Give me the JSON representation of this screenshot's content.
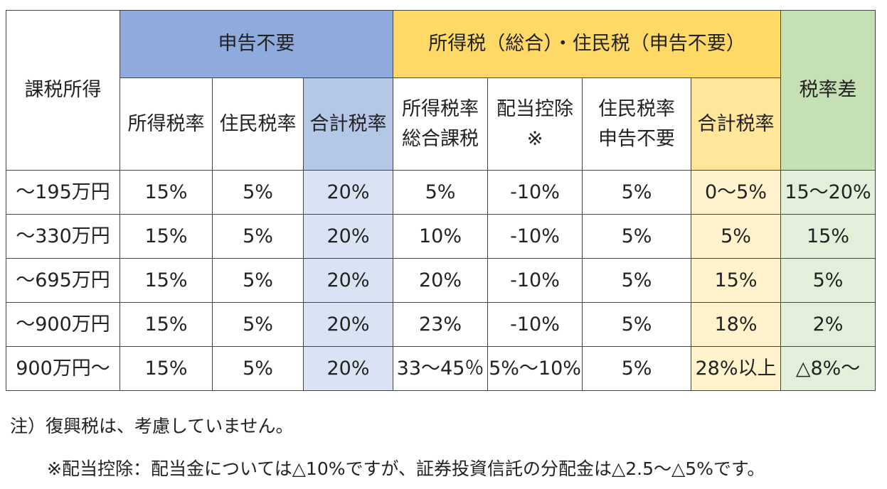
{
  "headers": {
    "taxable_income": "課税所得",
    "group_no_filing": "申告不要",
    "group_comprehensive": "所得税（総合）・住民税（申告不要）",
    "rate_difference": "税率差",
    "nf_income_tax_rate": "所得税率",
    "nf_resident_tax_rate": "住民税率",
    "nf_total_rate": "合計税率",
    "c_income_tax_rate_line1": "所得税率",
    "c_income_tax_rate_line2": "総合課税",
    "c_dividend_deduction_line1": "配当控除",
    "c_dividend_deduction_line2": "※",
    "c_resident_tax_rate_line1": "住民税率",
    "c_resident_tax_rate_line2": "申告不要",
    "c_total_rate": "合計税率"
  },
  "rows": [
    [
      "～195万円",
      "15%",
      "5%",
      "20%",
      "5%",
      "-10%",
      "5%",
      "0～5%",
      "15～20%"
    ],
    [
      "～330万円",
      "15%",
      "5%",
      "20%",
      "10%",
      "-10%",
      "5%",
      "5%",
      "15%"
    ],
    [
      "～695万円",
      "15%",
      "5%",
      "20%",
      "20%",
      "-10%",
      "5%",
      "15%",
      "5%"
    ],
    [
      "～900万円",
      "15%",
      "5%",
      "20%",
      "23%",
      "-10%",
      "5%",
      "18%",
      "2%"
    ],
    [
      "900万円～",
      "15%",
      "5%",
      "20%",
      "33～45％",
      "5%～10%",
      "5%",
      "28%以上",
      "△8%～"
    ]
  ],
  "notes": {
    "note1": "注）復興税は、考慮していません。",
    "note2": "※配当控除：配当金については△10%ですが、証券投資信託の分配金は△2.5～△5%です。"
  },
  "colors": {
    "no_filing_header": "#8faadc",
    "no_filing_total": "#dae3f3",
    "comprehensive_header": "#ffd966",
    "comprehensive_total": "#fff2cc",
    "rate_difference": "#c5e0b4"
  }
}
